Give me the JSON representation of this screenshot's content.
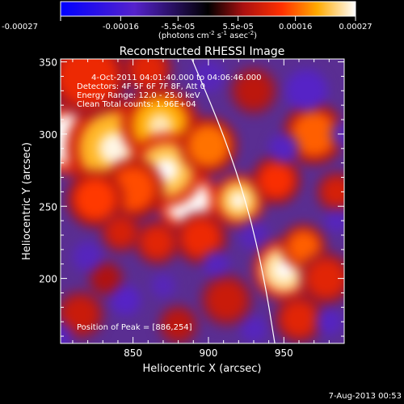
{
  "colorbar": {
    "ticks": [
      "-0.00027",
      "-0.00016",
      "-5.5e-05",
      "5.5e-05",
      "0.00016",
      "0.00027"
    ],
    "unit_prefix": "(photons cm",
    "unit_sup1": "-2",
    "unit_mid": " s",
    "unit_sup2": "-1",
    "unit_mid2": " asec",
    "unit_sup3": "-2",
    "unit_suffix": ")"
  },
  "chart_data": {
    "type": "heatmap",
    "title": "Reconstructed RHESSI Image",
    "xlabel": "Heliocentric X (arcsec)",
    "ylabel": "Heliocentric Y (arcsec)",
    "xlim": [
      802,
      990
    ],
    "ylim": [
      155,
      352
    ],
    "xticks": [
      850,
      900,
      950
    ],
    "yticks": [
      200,
      250,
      300,
      350
    ],
    "color_scale": [
      -0.00027,
      0.00027
    ],
    "peak": [
      886,
      254
    ],
    "limb_points": [
      [
        889,
        352
      ],
      [
        910,
        300
      ],
      [
        926,
        250
      ],
      [
        937,
        200
      ],
      [
        944,
        155
      ]
    ],
    "blobs": [
      {
        "x": 808,
        "y": 296,
        "r": 17,
        "v": 0.00027
      },
      {
        "x": 838,
        "y": 290,
        "r": 24,
        "v": 0.00021
      },
      {
        "x": 868,
        "y": 306,
        "r": 19,
        "v": 0.0002
      },
      {
        "x": 886,
        "y": 254,
        "r": 15,
        "v": 0.00027
      },
      {
        "x": 872,
        "y": 275,
        "r": 18,
        "v": 0.00022
      },
      {
        "x": 850,
        "y": 262,
        "r": 15,
        "v": 0.00015
      },
      {
        "x": 900,
        "y": 292,
        "r": 14,
        "v": 0.00017
      },
      {
        "x": 820,
        "y": 340,
        "r": 20,
        "v": 0.00012
      },
      {
        "x": 895,
        "y": 228,
        "r": 13,
        "v": 0.00012
      },
      {
        "x": 825,
        "y": 255,
        "r": 14,
        "v": 0.00014
      },
      {
        "x": 920,
        "y": 254,
        "r": 13,
        "v": 0.00022
      },
      {
        "x": 950,
        "y": 206,
        "r": 15,
        "v": 0.00024
      },
      {
        "x": 963,
        "y": 222,
        "r": 11,
        "v": 0.00016
      },
      {
        "x": 945,
        "y": 268,
        "r": 12,
        "v": 0.00013
      },
      {
        "x": 970,
        "y": 300,
        "r": 15,
        "v": 0.00016
      },
      {
        "x": 978,
        "y": 200,
        "r": 13,
        "v": 0.00011
      },
      {
        "x": 960,
        "y": 172,
        "r": 12,
        "v": 0.00011
      },
      {
        "x": 866,
        "y": 225,
        "r": 11,
        "v": 0.00011
      },
      {
        "x": 842,
        "y": 232,
        "r": 10,
        "v": 0.0001
      },
      {
        "x": 912,
        "y": 185,
        "r": 13,
        "v": 9e-05
      },
      {
        "x": 880,
        "y": 168,
        "r": 10,
        "v": 8e-05
      },
      {
        "x": 832,
        "y": 200,
        "r": 9,
        "v": 7e-05
      },
      {
        "x": 860,
        "y": 345,
        "r": 12,
        "v": 0.00011
      },
      {
        "x": 985,
        "y": 260,
        "r": 10,
        "v": 0.0001
      },
      {
        "x": 930,
        "y": 330,
        "r": 12,
        "v": 8e-05
      },
      {
        "x": 815,
        "y": 175,
        "r": 12,
        "v": 9e-05
      },
      {
        "x": 930,
        "y": 230,
        "r": 10,
        "v": -9e-05
      },
      {
        "x": 965,
        "y": 330,
        "r": 14,
        "v": -0.00012
      },
      {
        "x": 950,
        "y": 290,
        "r": 10,
        "v": -0.00011
      },
      {
        "x": 900,
        "y": 340,
        "r": 11,
        "v": -9e-05
      },
      {
        "x": 905,
        "y": 210,
        "r": 9,
        "v": -0.0001
      },
      {
        "x": 845,
        "y": 185,
        "r": 10,
        "v": -0.00012
      },
      {
        "x": 870,
        "y": 195,
        "r": 8,
        "v": -9e-05
      },
      {
        "x": 820,
        "y": 215,
        "r": 10,
        "v": -0.0001
      },
      {
        "x": 800,
        "y": 160,
        "r": 10,
        "v": -0.0001
      },
      {
        "x": 930,
        "y": 165,
        "r": 9,
        "v": -0.0001
      },
      {
        "x": 980,
        "y": 170,
        "r": 9,
        "v": -0.00011
      },
      {
        "x": 985,
        "y": 240,
        "r": 8,
        "v": -0.0001
      },
      {
        "x": 990,
        "y": 300,
        "r": 9,
        "v": -8e-05
      }
    ],
    "info": {
      "time": "4-Oct-2011 04:01:40.000 to 04:06:46.000",
      "detectors": "Detectors: 4F 5F 6F 7F 8F, Att 0",
      "energy": "Energy Range: 12.0 - 25.0 keV",
      "clean": "Clean     Total counts: 1.96E+04",
      "peak_label": "Position of Peak = [886,254]"
    }
  },
  "footer": {
    "date": "7-Aug-2013 00:53"
  }
}
